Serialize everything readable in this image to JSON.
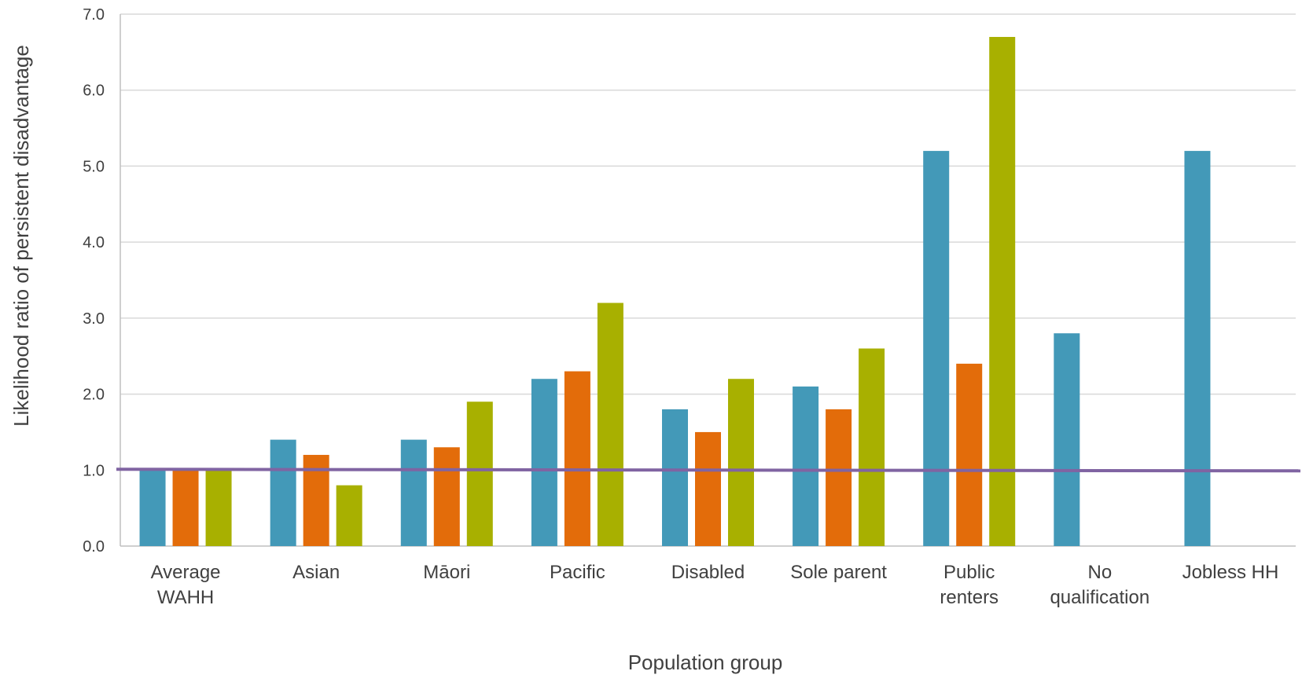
{
  "chart_data": {
    "type": "bar",
    "title": "",
    "xlabel": "Population group",
    "ylabel": "Likelihood ratio of persistent disadvantage",
    "ylim": [
      0,
      7
    ],
    "yticks": [
      "0.0",
      "1.0",
      "2.0",
      "3.0",
      "4.0",
      "5.0",
      "6.0",
      "7.0"
    ],
    "grid": true,
    "categories": [
      [
        "Average",
        "WAHH"
      ],
      [
        "Asian"
      ],
      [
        "Māori"
      ],
      [
        "Pacific"
      ],
      [
        "Disabled"
      ],
      [
        "Sole parent"
      ],
      [
        "Public",
        "renters"
      ],
      [
        "No",
        "qualification"
      ],
      [
        "Jobless HH"
      ]
    ],
    "series": [
      {
        "color": "#4399b8",
        "values": [
          1.0,
          1.4,
          1.4,
          2.2,
          1.8,
          2.1,
          5.2,
          2.8,
          5.2
        ]
      },
      {
        "color": "#e36c0a",
        "values": [
          1.0,
          1.2,
          1.3,
          2.3,
          1.5,
          1.8,
          2.4,
          null,
          null
        ]
      },
      {
        "color": "#a8b000",
        "values": [
          1.0,
          0.8,
          1.9,
          3.2,
          2.2,
          2.6,
          6.7,
          null,
          null
        ]
      }
    ],
    "reference_line": {
      "value": 1.0,
      "color": "#8064a2"
    },
    "legend": "none",
    "colors": {
      "grid": "#d9d9d9",
      "axis": "#bfbfbf",
      "text": "#404040"
    }
  }
}
